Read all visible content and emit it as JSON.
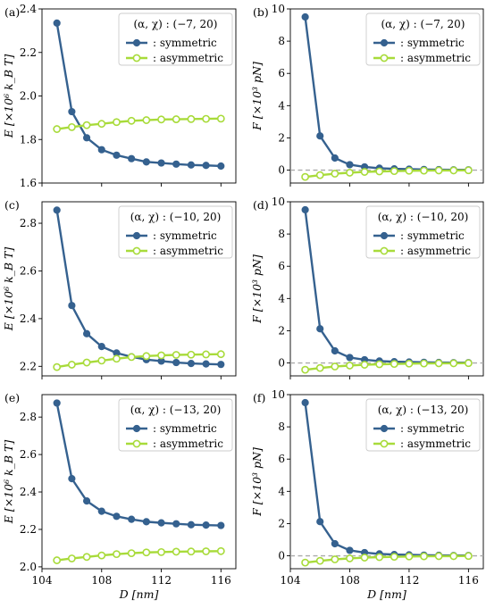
{
  "figure": {
    "x_label": "D [nm]",
    "x_ticks": [
      104,
      108,
      112,
      116
    ],
    "x_range": [
      104,
      117
    ],
    "series_names": [
      ": symmetric",
      ": asymmetric"
    ],
    "colors": {
      "symmetric": "#35618f",
      "asymmetric": "#a8db3a",
      "zero_line": "#aaaaaa"
    }
  },
  "chart_data": [
    {
      "type": "line",
      "panel": "(a)",
      "legend_title": "(α, χ) : (−7, 20)",
      "legend": "top-right",
      "ylabel": "E [×10⁶ k_B T]",
      "ylim": [
        1.6,
        2.4
      ],
      "yticks": [
        1.6,
        1.8,
        2.0,
        2.2,
        2.4
      ],
      "x": [
        105,
        106,
        107,
        108,
        109,
        110,
        111,
        112,
        113,
        114,
        115,
        116
      ],
      "series": [
        {
          "name": ": symmetric",
          "values": [
            2.335,
            1.928,
            1.808,
            1.753,
            1.728,
            1.712,
            1.697,
            1.692,
            1.687,
            1.683,
            1.681,
            1.678
          ]
        },
        {
          "name": ": asymmetric",
          "values": [
            1.848,
            1.857,
            1.866,
            1.872,
            1.88,
            1.886,
            1.889,
            1.892,
            1.893,
            1.894,
            1.895,
            1.896
          ]
        }
      ]
    },
    {
      "type": "line",
      "panel": "(b)",
      "legend_title": "(α, χ) : (−7, 20)",
      "legend": "top-right",
      "ylabel": "F [×10³ pN]",
      "ylim": [
        -0.8,
        10
      ],
      "yticks": [
        0,
        2,
        4,
        6,
        8,
        10
      ],
      "zero_line": true,
      "x": [
        105,
        106,
        107,
        108,
        109,
        110,
        111,
        112,
        113,
        114,
        115,
        116
      ],
      "series": [
        {
          "name": ": symmetric",
          "values": [
            9.5,
            2.12,
            0.75,
            0.34,
            0.2,
            0.12,
            0.08,
            0.06,
            0.04,
            0.03,
            0.02,
            0.02
          ]
        },
        {
          "name": ": asymmetric",
          "values": [
            -0.42,
            -0.31,
            -0.22,
            -0.16,
            -0.11,
            -0.08,
            -0.06,
            -0.04,
            -0.03,
            -0.02,
            -0.02,
            -0.01
          ]
        }
      ]
    },
    {
      "type": "line",
      "panel": "(c)",
      "legend_title": "(α, χ) : (−10, 20)",
      "legend": "top-right",
      "ylabel": "E [×10⁶ k_B T]",
      "ylim": [
        2.16,
        2.89
      ],
      "yticks": [
        2.2,
        2.4,
        2.6,
        2.8
      ],
      "x": [
        105,
        106,
        107,
        108,
        109,
        110,
        111,
        112,
        113,
        114,
        115,
        116
      ],
      "series": [
        {
          "name": ": symmetric",
          "values": [
            2.855,
            2.455,
            2.337,
            2.283,
            2.256,
            2.24,
            2.228,
            2.222,
            2.216,
            2.212,
            2.21,
            2.208
          ]
        },
        {
          "name": ": asymmetric",
          "values": [
            2.197,
            2.207,
            2.216,
            2.224,
            2.232,
            2.239,
            2.243,
            2.246,
            2.248,
            2.249,
            2.25,
            2.251
          ]
        }
      ]
    },
    {
      "type": "line",
      "panel": "(d)",
      "legend_title": "(α, χ) : (−10, 20)",
      "legend": "top-right",
      "ylabel": "F [×10³ pN]",
      "ylim": [
        -0.8,
        10
      ],
      "yticks": [
        0,
        2,
        4,
        6,
        8,
        10
      ],
      "zero_line": true,
      "x": [
        105,
        106,
        107,
        108,
        109,
        110,
        111,
        112,
        113,
        114,
        115,
        116
      ],
      "series": [
        {
          "name": ": symmetric",
          "values": [
            9.5,
            2.12,
            0.75,
            0.34,
            0.2,
            0.12,
            0.08,
            0.06,
            0.04,
            0.03,
            0.02,
            0.02
          ]
        },
        {
          "name": ": asymmetric",
          "values": [
            -0.42,
            -0.31,
            -0.22,
            -0.16,
            -0.11,
            -0.08,
            -0.06,
            -0.04,
            -0.03,
            -0.02,
            -0.02,
            -0.01
          ]
        }
      ]
    },
    {
      "type": "line",
      "panel": "(e)",
      "legend_title": "(α, χ) : (−13, 20)",
      "legend": "top-right",
      "ylabel": "E [×10⁶ k_B T]",
      "ylim": [
        1.99,
        2.92
      ],
      "yticks": [
        2.0,
        2.2,
        2.4,
        2.6,
        2.8
      ],
      "x": [
        105,
        106,
        107,
        108,
        109,
        110,
        111,
        112,
        113,
        114,
        115,
        116
      ],
      "series": [
        {
          "name": ": symmetric",
          "values": [
            2.875,
            2.471,
            2.352,
            2.297,
            2.27,
            2.254,
            2.241,
            2.235,
            2.23,
            2.225,
            2.223,
            2.221
          ]
        },
        {
          "name": ": asymmetric",
          "values": [
            2.035,
            2.045,
            2.053,
            2.061,
            2.068,
            2.073,
            2.077,
            2.079,
            2.081,
            2.082,
            2.083,
            2.084
          ]
        }
      ]
    },
    {
      "type": "line",
      "panel": "(f)",
      "legend_title": "(α, χ) : (−13, 20)",
      "legend": "top-right",
      "ylabel": "F [×10³ pN]",
      "ylim": [
        -0.8,
        10
      ],
      "yticks": [
        0,
        2,
        4,
        6,
        8,
        10
      ],
      "zero_line": true,
      "x": [
        105,
        106,
        107,
        108,
        109,
        110,
        111,
        112,
        113,
        114,
        115,
        116
      ],
      "series": [
        {
          "name": ": symmetric",
          "values": [
            9.5,
            2.12,
            0.75,
            0.34,
            0.2,
            0.12,
            0.08,
            0.06,
            0.04,
            0.03,
            0.02,
            0.02
          ]
        },
        {
          "name": ": asymmetric",
          "values": [
            -0.42,
            -0.31,
            -0.22,
            -0.16,
            -0.11,
            -0.08,
            -0.06,
            -0.04,
            -0.03,
            -0.02,
            -0.02,
            -0.01
          ]
        }
      ]
    }
  ]
}
